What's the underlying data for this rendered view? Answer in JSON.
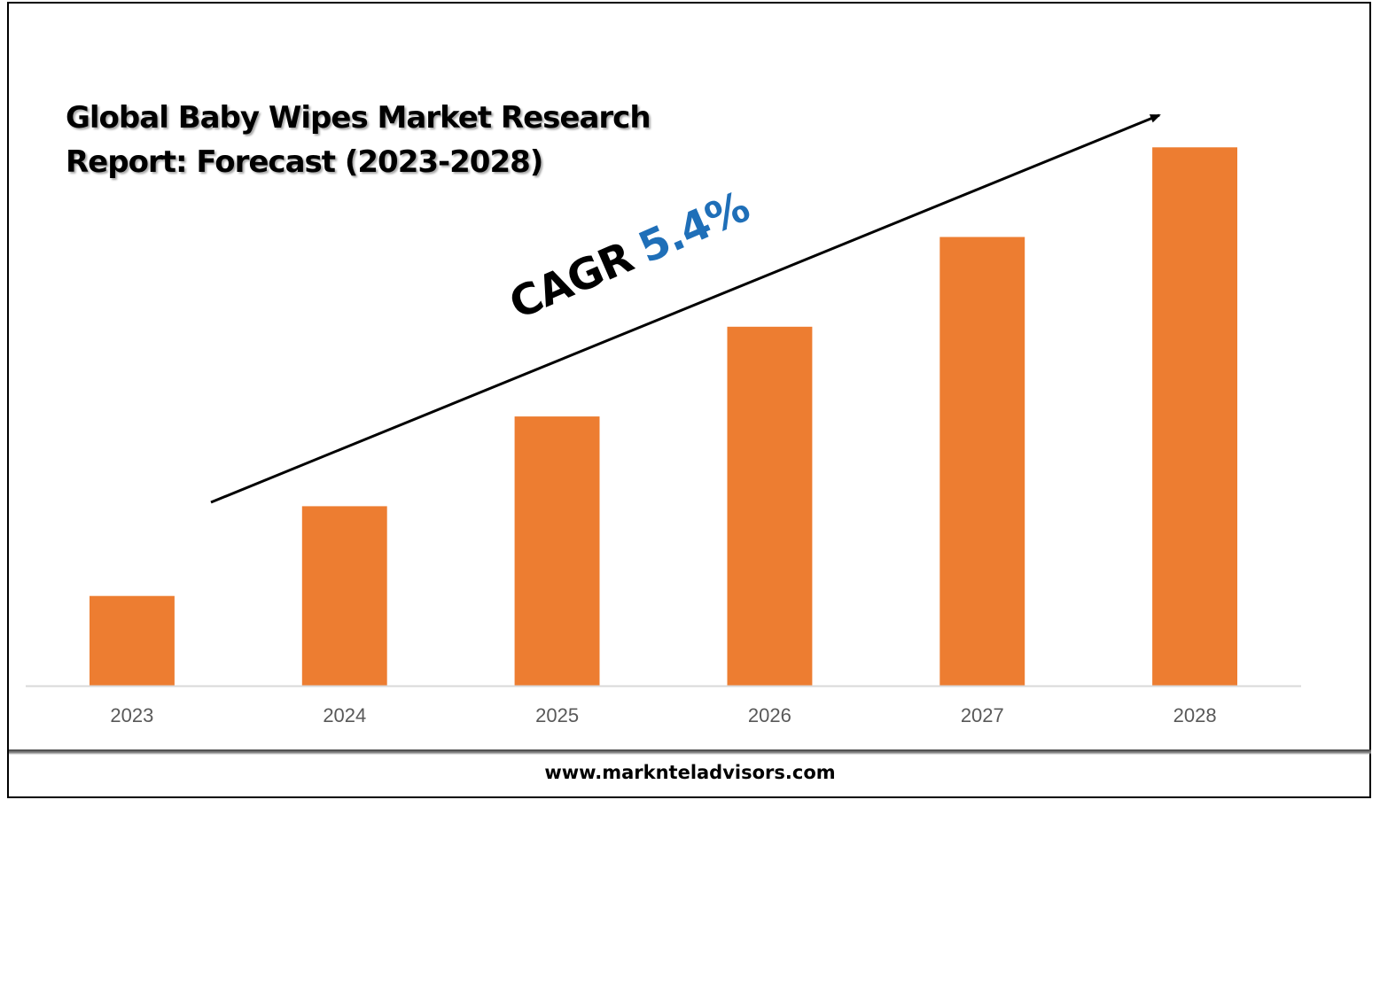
{
  "chart_data": {
    "type": "bar",
    "title": "Global Baby Wipes Market Research Report: Forecast (2023-2028)",
    "categories": [
      "2023",
      "2024",
      "2025",
      "2026",
      "2027",
      "2028"
    ],
    "values": [
      1,
      2,
      3,
      4,
      5,
      6
    ],
    "xlabel": "",
    "ylabel": "",
    "ylim": [
      0,
      6.2
    ],
    "grid": false,
    "legend": "none",
    "bar_color": "#ed7d31",
    "annotation": {
      "label": "CAGR",
      "value": "5.4%",
      "label_color": "#000000",
      "value_color": "#1f6fb8"
    }
  },
  "footer": {
    "url": "www.marknteladvisors.com"
  }
}
